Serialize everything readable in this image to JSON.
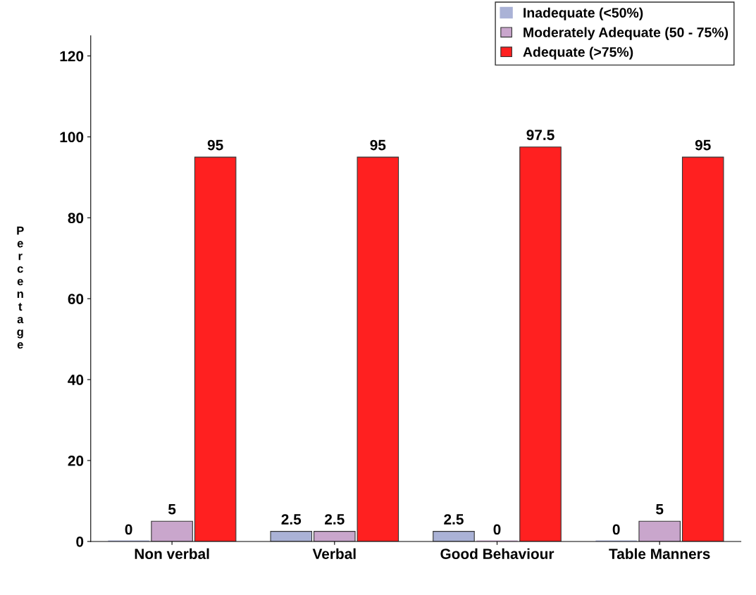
{
  "chart_data": {
    "type": "bar",
    "ylabel": "Percentage",
    "categories": [
      "Non verbal",
      "Verbal",
      "Good Behaviour",
      "Table Manners"
    ],
    "series": [
      {
        "name": "Inadequate (<50%)",
        "color": "#aab2d6",
        "values": [
          0,
          2.5,
          2.5,
          0
        ]
      },
      {
        "name": "Moderately Adequate (50 - 75%)",
        "color": "#c9a6cc",
        "values": [
          5,
          2.5,
          0,
          5
        ]
      },
      {
        "name": "Adequate (>75%)",
        "color": "#ff2020",
        "values": [
          95,
          95,
          97.5,
          95
        ]
      }
    ],
    "ylim": [
      0,
      125
    ],
    "yticks": [
      0,
      20,
      40,
      60,
      80,
      100,
      120
    ],
    "data_labels": true,
    "legend": "top right",
    "grid": false
  }
}
